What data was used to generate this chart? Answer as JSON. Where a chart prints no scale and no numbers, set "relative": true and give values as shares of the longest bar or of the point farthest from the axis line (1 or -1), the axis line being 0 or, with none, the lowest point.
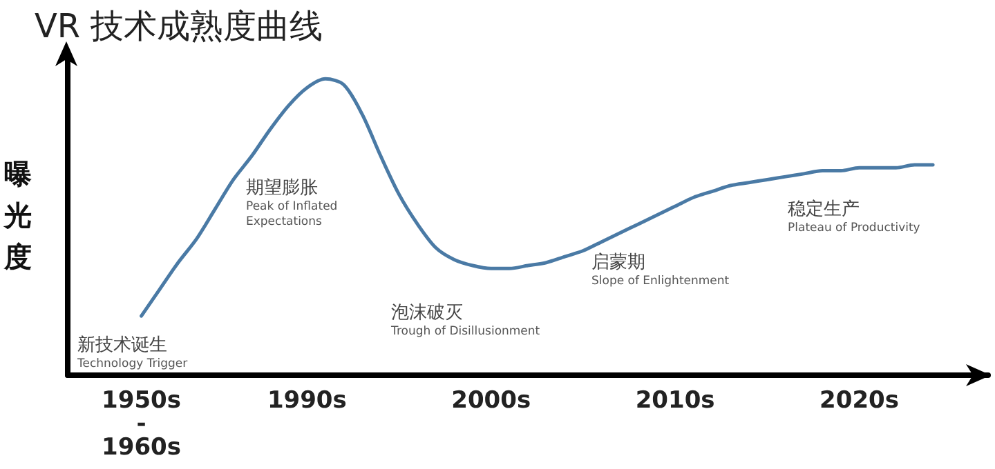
{
  "chart_data": {
    "type": "line",
    "title": "VR 技术成熟度曲线",
    "ylabel": "曝光度",
    "relative": true,
    "categories": [
      null,
      null,
      null,
      null,
      "1950s\n-\n1960s",
      null,
      null,
      null,
      null,
      null,
      null,
      null,
      null,
      "1990s",
      null,
      null,
      null,
      null,
      null,
      null,
      null,
      null,
      null,
      "2000s",
      null,
      null,
      null,
      null,
      null,
      null,
      null,
      null,
      null,
      "2010s",
      null,
      null,
      null,
      null,
      null,
      null,
      null,
      null,
      null,
      "2020s",
      null,
      null,
      null,
      null,
      null,
      null,
      null
    ],
    "series": [
      {
        "color": "#4a7aa5",
        "values": [
          null,
          null,
          null,
          null,
          0.2,
          0.29,
          0.38,
          0.46,
          0.56,
          0.66,
          0.74,
          0.83,
          0.91,
          0.97,
          1.0,
          0.98,
          0.88,
          0.74,
          0.61,
          0.51,
          0.43,
          0.39,
          0.37,
          0.36,
          0.36,
          0.37,
          0.38,
          0.4,
          0.42,
          0.45,
          0.48,
          0.51,
          0.54,
          0.57,
          0.6,
          0.62,
          0.64,
          0.65,
          0.66,
          0.67,
          0.68,
          0.69,
          0.69,
          0.7,
          0.7,
          0.7,
          0.71,
          0.71,
          null,
          null,
          null
        ]
      }
    ],
    "annotations": [
      "新技术诞生\nTechnology Trigger",
      "期望膨胀\nPeak of Inflated\nExpectations",
      "泡沫破灭\nTrough of Disillusionment",
      "启蒙期\nSlope of Enlightenment",
      "稳定生产\nPlateau of Productivity"
    ],
    "grid": false,
    "marker": "none",
    "line_style": "solid"
  }
}
